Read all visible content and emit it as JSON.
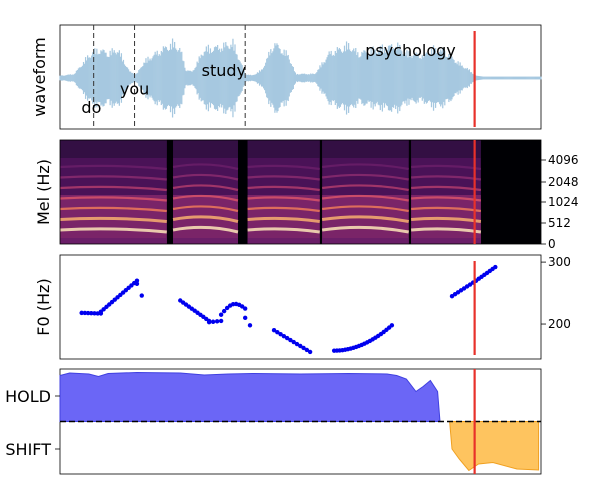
{
  "chart_data": [
    {
      "type": "area",
      "panel": "waveform",
      "ylabel": "waveform",
      "x_domain": [
        0,
        1
      ],
      "words": [
        {
          "text": "do",
          "x": 0.03,
          "y_frac": 0.2
        },
        {
          "text": "you",
          "x": 0.11,
          "y_frac": 0.38
        },
        {
          "text": "study",
          "x": 0.28,
          "y_frac": 0.56
        },
        {
          "text": "psychology",
          "x": 0.62,
          "y_frac": 0.75
        }
      ],
      "word_boundaries": [
        0.07,
        0.155,
        0.385
      ],
      "envelope": [
        [
          0.0,
          0.05
        ],
        [
          0.03,
          0.1
        ],
        [
          0.06,
          0.55
        ],
        [
          0.08,
          0.7
        ],
        [
          0.1,
          0.6
        ],
        [
          0.12,
          0.7
        ],
        [
          0.145,
          0.15
        ],
        [
          0.16,
          0.1
        ],
        [
          0.175,
          0.4
        ],
        [
          0.2,
          0.6
        ],
        [
          0.235,
          0.85
        ],
        [
          0.25,
          0.7
        ],
        [
          0.262,
          0.2
        ],
        [
          0.275,
          0.15
        ],
        [
          0.3,
          0.7
        ],
        [
          0.33,
          0.75
        ],
        [
          0.36,
          0.85
        ],
        [
          0.385,
          0.1
        ],
        [
          0.4,
          0.06
        ],
        [
          0.42,
          0.2
        ],
        [
          0.445,
          0.85
        ],
        [
          0.475,
          0.55
        ],
        [
          0.49,
          0.1
        ],
        [
          0.53,
          0.1
        ],
        [
          0.56,
          0.6
        ],
        [
          0.6,
          0.8
        ],
        [
          0.62,
          0.6
        ],
        [
          0.7,
          0.8
        ],
        [
          0.72,
          0.6
        ],
        [
          0.755,
          0.55
        ],
        [
          0.775,
          0.7
        ],
        [
          0.8,
          0.65
        ],
        [
          0.83,
          0.35
        ],
        [
          0.85,
          0.2
        ],
        [
          0.865,
          0.05
        ],
        [
          0.88,
          0.03
        ],
        [
          1.0,
          0.03
        ]
      ],
      "cursor_x": 0.862,
      "colors": {
        "wave": "#a6c8e0",
        "cursor": "#e8312a"
      }
    },
    {
      "type": "heatmap",
      "panel": "mel-spectrogram",
      "ylabel": "Mel (Hz)",
      "y_ticks": [
        "0",
        "512",
        "1024",
        "2048",
        "4096"
      ],
      "data_end_x": 0.875,
      "segments": [
        [
          0.0,
          0.222
        ],
        [
          0.235,
          0.37
        ],
        [
          0.39,
          0.54
        ],
        [
          0.545,
          0.725
        ],
        [
          0.73,
          0.875
        ]
      ],
      "cursor_x": 0.862,
      "colors": {
        "cursor": "#e8312a"
      }
    },
    {
      "type": "scatter",
      "panel": "f0",
      "ylabel": "F0 (Hz)",
      "y_ticks": [
        200,
        300
      ],
      "ylim": [
        150,
        305
      ],
      "segments": [
        {
          "x0": 0.045,
          "x1": 0.085,
          "y0": 218,
          "y1": 217,
          "points": 7,
          "shape": "flat"
        },
        {
          "x0": 0.085,
          "x1": 0.16,
          "y0": 220,
          "y1": 270,
          "points": 14,
          "shape": "rise"
        },
        {
          "x0": 0.16,
          "x1": 0.17,
          "y0": 265,
          "y1": 246,
          "points": 2,
          "shape": "fall"
        },
        {
          "x0": 0.25,
          "x1": 0.31,
          "y0": 238,
          "y1": 205,
          "points": 11,
          "shape": "fall"
        },
        {
          "x0": 0.31,
          "x1": 0.335,
          "y0": 203,
          "y1": 205,
          "points": 4,
          "shape": "flat"
        },
        {
          "x0": 0.335,
          "x1": 0.385,
          "y0": 215,
          "y1": 225,
          "points": 9,
          "shape": "hump"
        },
        {
          "x0": 0.385,
          "x1": 0.395,
          "y0": 210,
          "y1": 198,
          "points": 2,
          "shape": "fall"
        },
        {
          "x0": 0.445,
          "x1": 0.52,
          "y0": 190,
          "y1": 155,
          "points": 12,
          "shape": "fall"
        },
        {
          "x0": 0.57,
          "x1": 0.69,
          "y0": 157,
          "y1": 198,
          "points": 22,
          "shape": "u"
        },
        {
          "x0": 0.815,
          "x1": 0.865,
          "y0": 245,
          "y1": 270,
          "points": 9,
          "shape": "rise"
        },
        {
          "x0": 0.865,
          "x1": 0.905,
          "y0": 270,
          "y1": 292,
          "points": 8,
          "shape": "rise"
        }
      ],
      "cursor_x": 0.862,
      "colors": {
        "points": "#0000ee",
        "cursor": "#e8312a"
      }
    },
    {
      "type": "area",
      "panel": "turn-taking",
      "y_ticks": [
        "HOLD",
        "SHIFT"
      ],
      "ylim": [
        -1,
        1
      ],
      "hold_series": [
        [
          0.0,
          0.92
        ],
        [
          0.02,
          0.97
        ],
        [
          0.06,
          0.95
        ],
        [
          0.08,
          0.9
        ],
        [
          0.1,
          0.96
        ],
        [
          0.16,
          0.98
        ],
        [
          0.25,
          0.97
        ],
        [
          0.3,
          0.93
        ],
        [
          0.35,
          0.95
        ],
        [
          0.4,
          0.96
        ],
        [
          0.5,
          0.95
        ],
        [
          0.6,
          0.96
        ],
        [
          0.68,
          0.95
        ],
        [
          0.7,
          0.92
        ],
        [
          0.72,
          0.85
        ],
        [
          0.74,
          0.6
        ],
        [
          0.755,
          0.7
        ],
        [
          0.77,
          0.82
        ],
        [
          0.785,
          0.6
        ],
        [
          0.79,
          0.0
        ]
      ],
      "shift_series": [
        [
          0.81,
          0.0
        ],
        [
          0.815,
          -0.55
        ],
        [
          0.83,
          -0.75
        ],
        [
          0.85,
          -0.98
        ],
        [
          0.87,
          -0.85
        ],
        [
          0.9,
          -0.82
        ],
        [
          0.95,
          -0.95
        ],
        [
          0.995,
          -0.97
        ]
      ],
      "cursor_x": 0.862,
      "colors": {
        "hold": "#6b66f6",
        "hold_edge": "#4040e0",
        "shift": "#fec45f",
        "shift_edge": "#f0a020",
        "cursor": "#e8312a"
      }
    }
  ]
}
